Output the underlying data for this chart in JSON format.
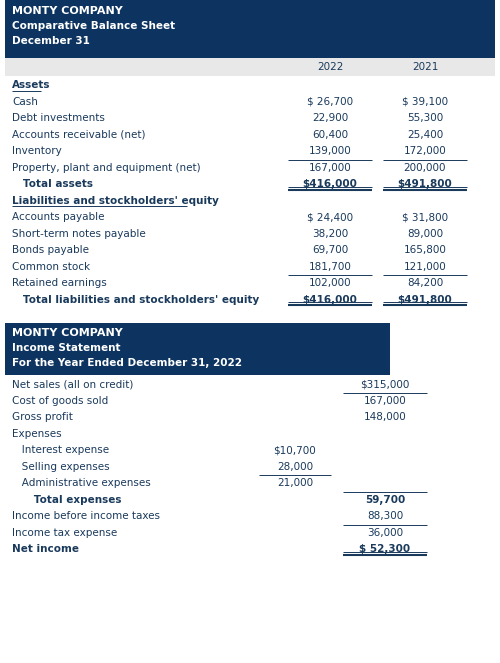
{
  "header_bg": "#0d3460",
  "col_header_bg": "#e8e8e8",
  "bs_title1": "MONTY COMPANY",
  "bs_title2": "Comparative Balance Sheet",
  "bs_title3": "December 31",
  "bs_col1": "2022",
  "bs_col2": "2021",
  "bs_rows": [
    {
      "label": "Assets",
      "v1": "",
      "v2": "",
      "style": "header_underline"
    },
    {
      "label": "Cash",
      "v1": "$ 26,700",
      "v2": "$ 39,100",
      "style": "normal"
    },
    {
      "label": "Debt investments",
      "v1": "22,900",
      "v2": "55,300",
      "style": "normal"
    },
    {
      "label": "Accounts receivable (net)",
      "v1": "60,400",
      "v2": "25,400",
      "style": "normal"
    },
    {
      "label": "Inventory",
      "v1": "139,000",
      "v2": "172,000",
      "style": "normal"
    },
    {
      "label": "Property, plant and equipment (net)",
      "v1": "167,000",
      "v2": "200,000",
      "style": "single_line_above"
    },
    {
      "label": "   Total assets",
      "v1": "$416,000",
      "v2": "$491,800",
      "style": "double_underline"
    },
    {
      "label": "Liabilities and stockholders' equity",
      "v1": "",
      "v2": "",
      "style": "header_underline"
    },
    {
      "label": "Accounts payable",
      "v1": "$ 24,400",
      "v2": "$ 31,800",
      "style": "normal"
    },
    {
      "label": "Short-term notes payable",
      "v1": "38,200",
      "v2": "89,000",
      "style": "normal"
    },
    {
      "label": "Bonds payable",
      "v1": "69,700",
      "v2": "165,800",
      "style": "normal"
    },
    {
      "label": "Common stock",
      "v1": "181,700",
      "v2": "121,000",
      "style": "normal"
    },
    {
      "label": "Retained earnings",
      "v1": "102,000",
      "v2": "84,200",
      "style": "single_line_above"
    },
    {
      "label": "   Total liabilities and stockholders' equity",
      "v1": "$416,000",
      "v2": "$491,800",
      "style": "double_underline"
    }
  ],
  "is_title1": "MONTY COMPANY",
  "is_title2": "Income Statement",
  "is_title3": "For the Year Ended December 31, 2022",
  "is_rows": [
    {
      "label": "Net sales (all on credit)",
      "v1": "",
      "v2": "$315,000",
      "style": "normal"
    },
    {
      "label": "Cost of goods sold",
      "v1": "",
      "v2": "167,000",
      "style": "single_line_above_v2"
    },
    {
      "label": "Gross profit",
      "v1": "",
      "v2": "148,000",
      "style": "normal"
    },
    {
      "label": "Expenses",
      "v1": "",
      "v2": "",
      "style": "normal"
    },
    {
      "label": "   Interest expense",
      "v1": "$10,700",
      "v2": "",
      "style": "normal"
    },
    {
      "label": "   Selling expenses",
      "v1": "28,000",
      "v2": "",
      "style": "normal"
    },
    {
      "label": "   Administrative expenses",
      "v1": "21,000",
      "v2": "",
      "style": "single_line_above_v1"
    },
    {
      "label": "      Total expenses",
      "v1": "",
      "v2": "59,700",
      "style": "single_line_above_v2"
    },
    {
      "label": "Income before income taxes",
      "v1": "",
      "v2": "88,300",
      "style": "normal"
    },
    {
      "label": "Income tax expense",
      "v1": "",
      "v2": "36,000",
      "style": "single_line_above_v2"
    },
    {
      "label": "Net income",
      "v1": "",
      "v2": "$ 52,300",
      "style": "double_underline_v2"
    }
  ]
}
